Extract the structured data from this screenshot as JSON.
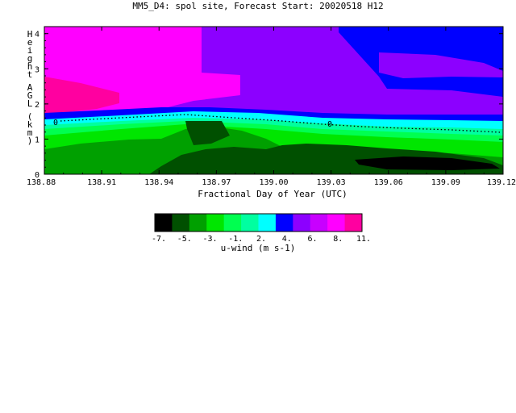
{
  "chart_data": {
    "type": "heatmap",
    "title": "MM5_D4: spol site,  Forecast Start: 20020518 H12",
    "xlabel": "Fractional Day of Year (UTC)",
    "ylabel": "Height AGL (km)",
    "xlim": [
      138.88,
      139.12
    ],
    "ylim": [
      0,
      4.2
    ],
    "x_ticks": [
      "138.88",
      "138.91",
      "138.94",
      "138.97",
      "139.00",
      "139.03",
      "139.06",
      "139.09",
      "139.12"
    ],
    "y_ticks": [
      "0",
      "1",
      "2",
      "3",
      "4"
    ],
    "contour_label": "0",
    "colorbar": {
      "label": "u-wind (m s-1)",
      "tick_labels": [
        "-7.",
        "-5.",
        "-3.",
        "-1.",
        "2.",
        "4.",
        "6.",
        "8.",
        "11."
      ],
      "colors": [
        "#000000",
        "#005000",
        "#00a000",
        "#00e600",
        "#00ff50",
        "#00ffa0",
        "#00ffff",
        "#0000ff",
        "#8c00ff",
        "#c800ff",
        "#ff00ff",
        "#ff00a0"
      ]
    }
  }
}
